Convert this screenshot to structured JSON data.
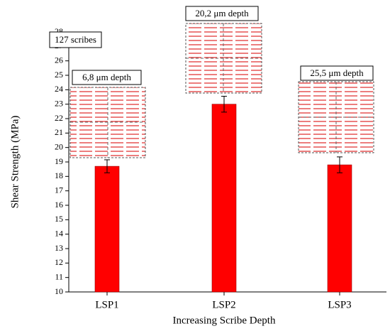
{
  "chart_data": {
    "type": "bar",
    "x_label": "Increasing Scribe Depth",
    "y_label": "Shear Strength (MPa)",
    "categories": [
      "LSP1",
      "LSP2",
      "LSP3"
    ],
    "values": [
      18.7,
      23.0,
      18.8
    ],
    "errors": [
      0.45,
      0.55,
      0.55
    ],
    "color": "#ff0000",
    "ylim": [
      10,
      28
    ],
    "yticks": [
      10,
      11,
      12,
      13,
      14,
      15,
      16,
      17,
      18,
      19,
      20,
      21,
      22,
      23,
      24,
      25,
      26,
      27,
      28
    ],
    "annotations": [
      "127 scribes",
      "6,8 μm depth",
      "20,2 μm depth",
      "25,5 μm depth"
    ]
  }
}
